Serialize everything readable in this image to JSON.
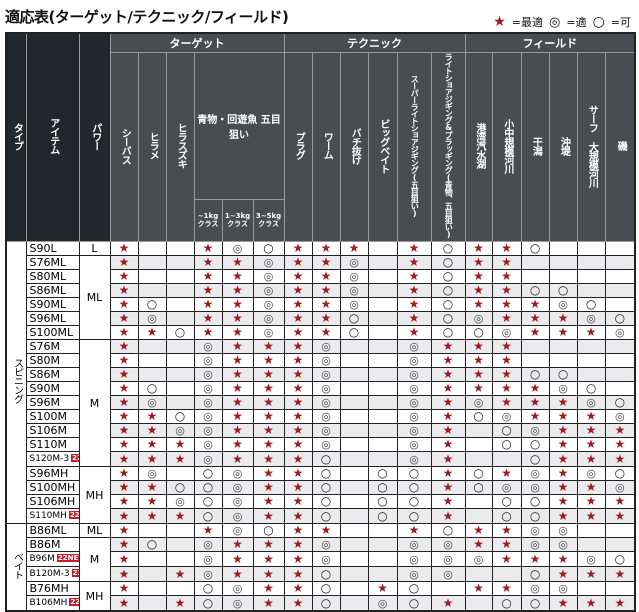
{
  "title": "適応表(ターゲット/テクニック/フィールド)",
  "legend": {
    "best": "=最適",
    "good": "=適",
    "ok": "=可",
    "symbols": {
      "S": "★",
      "D": "◎",
      "O": "○",
      "-": ""
    }
  },
  "colors": {
    "star": "#9b1c22",
    "header": "#4a4c4f",
    "header_dark": "#22272c",
    "new_badge": "#c41e2a",
    "alt_row": "#ebebed"
  },
  "headers": {
    "type": "タイプ",
    "item": "アイテム",
    "power": "パワー",
    "target": "ターゲット",
    "technique": "テクニック",
    "field": "フィールド",
    "aomono": "青物・回遊魚 五目狙い",
    "columns": [
      "シーバス",
      "ヒラメ",
      "ヒラスズキ",
      "~1kg クラス",
      "1~3kg クラス",
      "3~5kg クラス",
      "プラグ",
      "ワーム",
      "バチ抜け",
      "ビッグベイト",
      "スーパーライトショアジギング(五目狙い)",
      "ライトショアジギング&プラッギング(青物、五目狙い)",
      "港湾汽水湖",
      "小中規模河川",
      "干潟",
      "沖堤",
      "サーフ 大規模河川",
      "磯"
    ]
  },
  "groups": [
    {
      "type": "スピニング",
      "rows": [
        {
          "item": "S90L",
          "power": "L",
          "new": false,
          "v": "S--SDOSSS-SOSSO---"
        },
        {
          "item": "S76ML",
          "power": "ML",
          "new": false,
          "v": "S--SSDSSD-SOSS----"
        },
        {
          "item": "S80ML",
          "power": "ML",
          "new": false,
          "v": "S--SSDSSD-SOSS----"
        },
        {
          "item": "S86ML",
          "power": "ML",
          "new": false,
          "v": "S--SSDSSD-SOSSOO--"
        },
        {
          "item": "S90ML",
          "power": "ML",
          "new": false,
          "v": "SO-SSDSSD-SOSSSDO-"
        },
        {
          "item": "S96ML",
          "power": "ML",
          "new": false,
          "v": "SD-SSDSSO-SODSSSDO"
        },
        {
          "item": "S100ML",
          "power": "ML",
          "new": false,
          "v": "SSOSSDSSO-SOODSSSD"
        },
        {
          "item": "S76M",
          "power": "M",
          "new": false,
          "v": "S--DSSSD--DSSS----"
        },
        {
          "item": "S80M",
          "power": "M",
          "new": false,
          "v": "S--DSSSD--DSSS----"
        },
        {
          "item": "S86M",
          "power": "M",
          "new": false,
          "v": "S--DSSSD--DSSSOO--"
        },
        {
          "item": "S90M",
          "power": "M",
          "new": false,
          "v": "SO-DSSSD--DSSSSDO-"
        },
        {
          "item": "S96M",
          "power": "M",
          "new": false,
          "v": "SD-DSSSD--DSDSSSDO"
        },
        {
          "item": "S100M",
          "power": "M",
          "new": false,
          "v": "SSODSSSD--DSODSSSD"
        },
        {
          "item": "S106M",
          "power": "M",
          "new": false,
          "v": "SSDDSSSD--DS-ODSSS"
        },
        {
          "item": "S110M",
          "power": "M",
          "new": false,
          "v": "SSSDSSSD--DS-OOSSS"
        },
        {
          "item": "S120M-3",
          "power": "M",
          "new": true,
          "v": "SSSDSSSO--DS--OSSS"
        },
        {
          "item": "S96MH",
          "power": "MH",
          "new": false,
          "v": "SD-ODSSO-OOSOSDSDO"
        },
        {
          "item": "S100MH",
          "power": "MH",
          "new": false,
          "v": "SSOODSSO-OOSODDSSD"
        },
        {
          "item": "S106MH",
          "power": "MH",
          "new": false,
          "v": "SSDODSSO-OOS-OOSSS"
        },
        {
          "item": "S110MH",
          "power": "MH",
          "new": true,
          "v": "SSSODSSO-OOS-OOSSS"
        }
      ]
    },
    {
      "type": "ベイト",
      "rows": [
        {
          "item": "B86ML",
          "power": "ML",
          "new": false,
          "v": "S--SDOSS--SOSSDD--"
        },
        {
          "item": "B86M",
          "power": "M",
          "new": false,
          "v": "SO-DSSSD--DDSSDD--"
        },
        {
          "item": "B96M",
          "power": "M",
          "new": true,
          "v": "S--DSSSD--DDDSSSDO"
        },
        {
          "item": "B120M-3",
          "power": "M",
          "new": true,
          "v": "S-SDSSSO--DD--OSSS"
        },
        {
          "item": "B76MH",
          "power": "MH",
          "new": false,
          "v": "S--ODSSO-SO-SSDD--"
        },
        {
          "item": "B106MH",
          "power": "MH",
          "new": true,
          "v": "S-SODSSO-DOS-OOSSS"
        }
      ]
    }
  ],
  "new_badge": "22NEW"
}
